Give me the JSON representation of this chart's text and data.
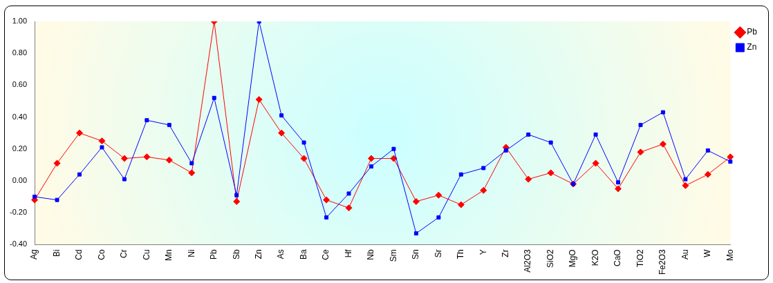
{
  "chart_data": {
    "type": "line",
    "categories": [
      "Ag",
      "Bi",
      "Cd",
      "Co",
      "Cr",
      "Cu",
      "Mn",
      "Ni",
      "Pb",
      "Sb",
      "Zn",
      "As",
      "Ba",
      "Ce",
      "Hf",
      "Nb",
      "Sm",
      "Sn",
      "Sr",
      "Th",
      "Y",
      "Zr",
      "Al2O3",
      "SiO2",
      "MgO",
      "K2O",
      "CaO",
      "TiO2",
      "Fe2O3",
      "Au",
      "W",
      "Mo"
    ],
    "series": [
      {
        "name": "Pb",
        "color": "#ff0000",
        "marker": "diamond",
        "values": [
          -0.12,
          0.11,
          0.3,
          0.25,
          0.14,
          0.15,
          0.13,
          0.05,
          1.0,
          -0.13,
          0.51,
          0.3,
          0.14,
          -0.12,
          -0.17,
          0.14,
          0.14,
          -0.13,
          -0.09,
          -0.15,
          -0.06,
          0.21,
          0.01,
          0.05,
          -0.02,
          0.11,
          -0.05,
          0.18,
          0.23,
          -0.03,
          0.04,
          0.15
        ]
      },
      {
        "name": "Zn",
        "color": "#0000ff",
        "marker": "square",
        "values": [
          -0.1,
          -0.12,
          0.04,
          0.21,
          0.01,
          0.38,
          0.35,
          0.11,
          0.52,
          -0.09,
          1.0,
          0.41,
          0.24,
          -0.23,
          -0.08,
          0.09,
          0.2,
          -0.33,
          -0.23,
          0.04,
          0.08,
          0.19,
          0.29,
          0.24,
          -0.02,
          0.29,
          -0.01,
          0.35,
          0.43,
          0.01,
          0.19,
          0.12
        ]
      }
    ],
    "ylim": [
      -0.4,
      1.0
    ],
    "yticks": [
      {
        "value": -0.4,
        "label": "-0.40"
      },
      {
        "value": -0.2,
        "label": "-0.20"
      },
      {
        "value": 0,
        "label": "0.00"
      },
      {
        "value": 0.2,
        "label": "0.20"
      },
      {
        "value": 0.4,
        "label": "0.40"
      },
      {
        "value": 0.6,
        "label": "0.60"
      },
      {
        "value": 0.8,
        "label": "0.80"
      },
      {
        "value": 1.0,
        "label": "1.00"
      }
    ],
    "grid": false,
    "legend": "top right",
    "line_style": "solid"
  }
}
